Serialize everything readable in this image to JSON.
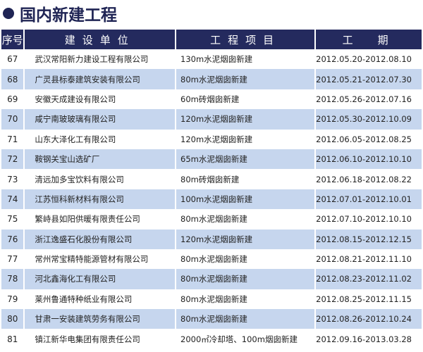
{
  "title": "国内新建工程",
  "headers": [
    "序号",
    "建设单位",
    "工程项目",
    "工　期"
  ],
  "rows": [
    [
      "67",
      "武汉常阳新力建设工程有限公司",
      "130m水泥烟囱新建",
      "2012.05.20-2012.08.10"
    ],
    [
      "68",
      "广灵县标泰建筑安装有限公司",
      "80m水泥烟囱新建",
      "2012.05.21-2012.07.30"
    ],
    [
      "69",
      "安徽天成建设有限公司",
      "60m砖烟囱新建",
      "2012.05.26-2012.07.16"
    ],
    [
      "70",
      "咸宁南玻玻璃有限公司",
      "120m水泥烟囱新建",
      "2012.05.30-2012.10.09"
    ],
    [
      "71",
      "山东大泽化工有限公司",
      "120m水泥烟囱新建",
      "2012.06.05-2012.08.25"
    ],
    [
      "72",
      "鞍钢关宝山选矿厂",
      "65m水泥烟囱新建",
      "2012.06.10-2012.10.10"
    ],
    [
      "73",
      "清远加多宝饮料有限公司",
      "80m砖烟囱新建",
      "2012.06.18-2012.08.22"
    ],
    [
      "74",
      "江苏恒科新材料有限公司",
      "100m水泥烟囱新建",
      "2012.07.01-2012.10.01"
    ],
    [
      "75",
      "繁峙县如阳供暖有限责任公司",
      "80m水泥烟囱新建",
      "2012.07.10-2012.10.10"
    ],
    [
      "76",
      "浙江逸盛石化股份有限公司",
      "120m水泥烟囱新建",
      "2012.08.15-2012.12.15"
    ],
    [
      "77",
      "常州常宝精特能源管材有限公司",
      "80m水泥烟囱新建",
      "2012.08.21-2012.11.10"
    ],
    [
      "78",
      "河北鑫海化工有限公司",
      "80m水泥烟囱新建",
      "2012.08.23-2012.11.02"
    ],
    [
      "79",
      "莱州鲁通特种纸业有限公司",
      "80m水泥烟囱新建",
      "2012.08.25-2012.11.15"
    ],
    [
      "80",
      "甘肃一安装建筑劳务有限公司",
      "80m水泥烟囱新建",
      "2012.08.26-2012.10.24"
    ],
    [
      "81",
      "镇江新华电集团有限责任公司",
      "2000㎡冷却塔、100m烟囱新建",
      "2012.09.16-2013.03.28"
    ]
  ],
  "colors": {
    "header": "#242a5e",
    "alt_row": "#c6d6ee"
  }
}
